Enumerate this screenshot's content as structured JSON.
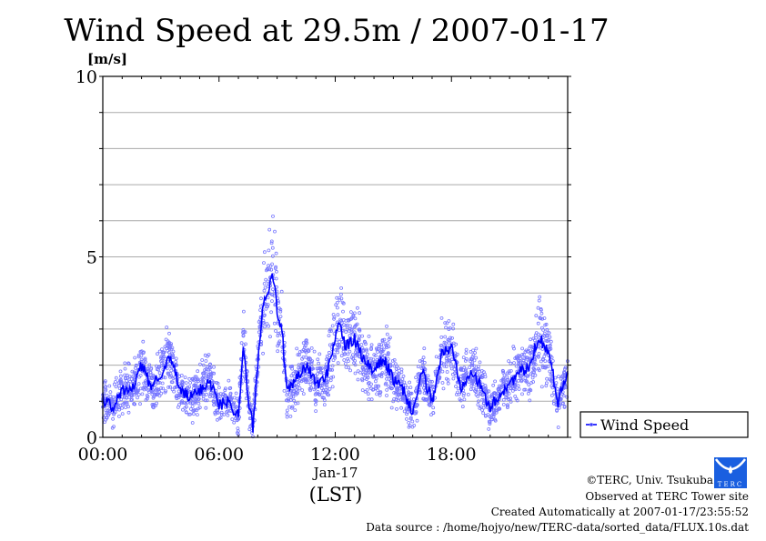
{
  "chart_data": {
    "type": "line",
    "title": "Wind Speed at 29.5m / 2007-01-17",
    "ylabel": "[m/s]",
    "xlabel": "(LST)",
    "date_label": "Jan-17",
    "ylim": [
      0,
      10
    ],
    "xlim_hours": [
      0,
      24
    ],
    "y_ticks": [
      {
        "value": 0,
        "label": "0"
      },
      {
        "value": 5,
        "label": "5"
      },
      {
        "value": 10,
        "label": "10"
      }
    ],
    "x_ticks": [
      {
        "value": 0,
        "label": "00:00"
      },
      {
        "value": 6,
        "label": "06:00"
      },
      {
        "value": 12,
        "label": "12:00"
      },
      {
        "value": 18,
        "label": "18:00"
      }
    ],
    "grid": true,
    "legend": {
      "position": "right",
      "entries": [
        "Wind Speed"
      ]
    },
    "series": [
      {
        "name": "Wind Speed",
        "color": "#0000ff",
        "scatter_color": "#7777ff",
        "x_hours": [
          0,
          0.5,
          1,
          1.5,
          2,
          2.5,
          3,
          3.5,
          4,
          4.5,
          5,
          5.5,
          6,
          6.5,
          7,
          7.25,
          7.5,
          7.75,
          8,
          8.25,
          8.5,
          8.75,
          9,
          9.25,
          9.5,
          10,
          10.5,
          11,
          11.5,
          12,
          12.25,
          12.5,
          13,
          13.5,
          14,
          14.5,
          15,
          15.5,
          16,
          16.5,
          17,
          17.5,
          18,
          18.5,
          19,
          19.5,
          20,
          20.5,
          21,
          21.5,
          22,
          22.5,
          23,
          23.5,
          24
        ],
        "values": [
          1.1,
          0.8,
          1.3,
          1.3,
          2.0,
          1.4,
          1.8,
          2.2,
          1.3,
          1.1,
          1.3,
          1.6,
          0.9,
          1.0,
          0.6,
          2.6,
          1.0,
          0.3,
          2.0,
          3.7,
          4.0,
          4.7,
          3.5,
          3.0,
          1.2,
          1.6,
          2.0,
          1.5,
          1.6,
          2.8,
          3.2,
          2.5,
          2.7,
          2.1,
          1.8,
          2.2,
          1.6,
          1.3,
          0.7,
          1.8,
          1.0,
          2.3,
          2.5,
          1.4,
          1.9,
          1.4,
          0.8,
          1.2,
          1.5,
          1.8,
          1.9,
          2.8,
          2.4,
          1.0,
          1.9
        ]
      }
    ]
  },
  "footer": {
    "copyright": "©TERC, Univ. Tsukuba",
    "observed": "Observed at TERC Tower site",
    "created": "Created Automatically at 2007-01-17/23:55:52",
    "source": "Data source : /home/hojyo/new/TERC-data/sorted_data/FLUX.10s.dat",
    "logo_text": "TERC"
  }
}
